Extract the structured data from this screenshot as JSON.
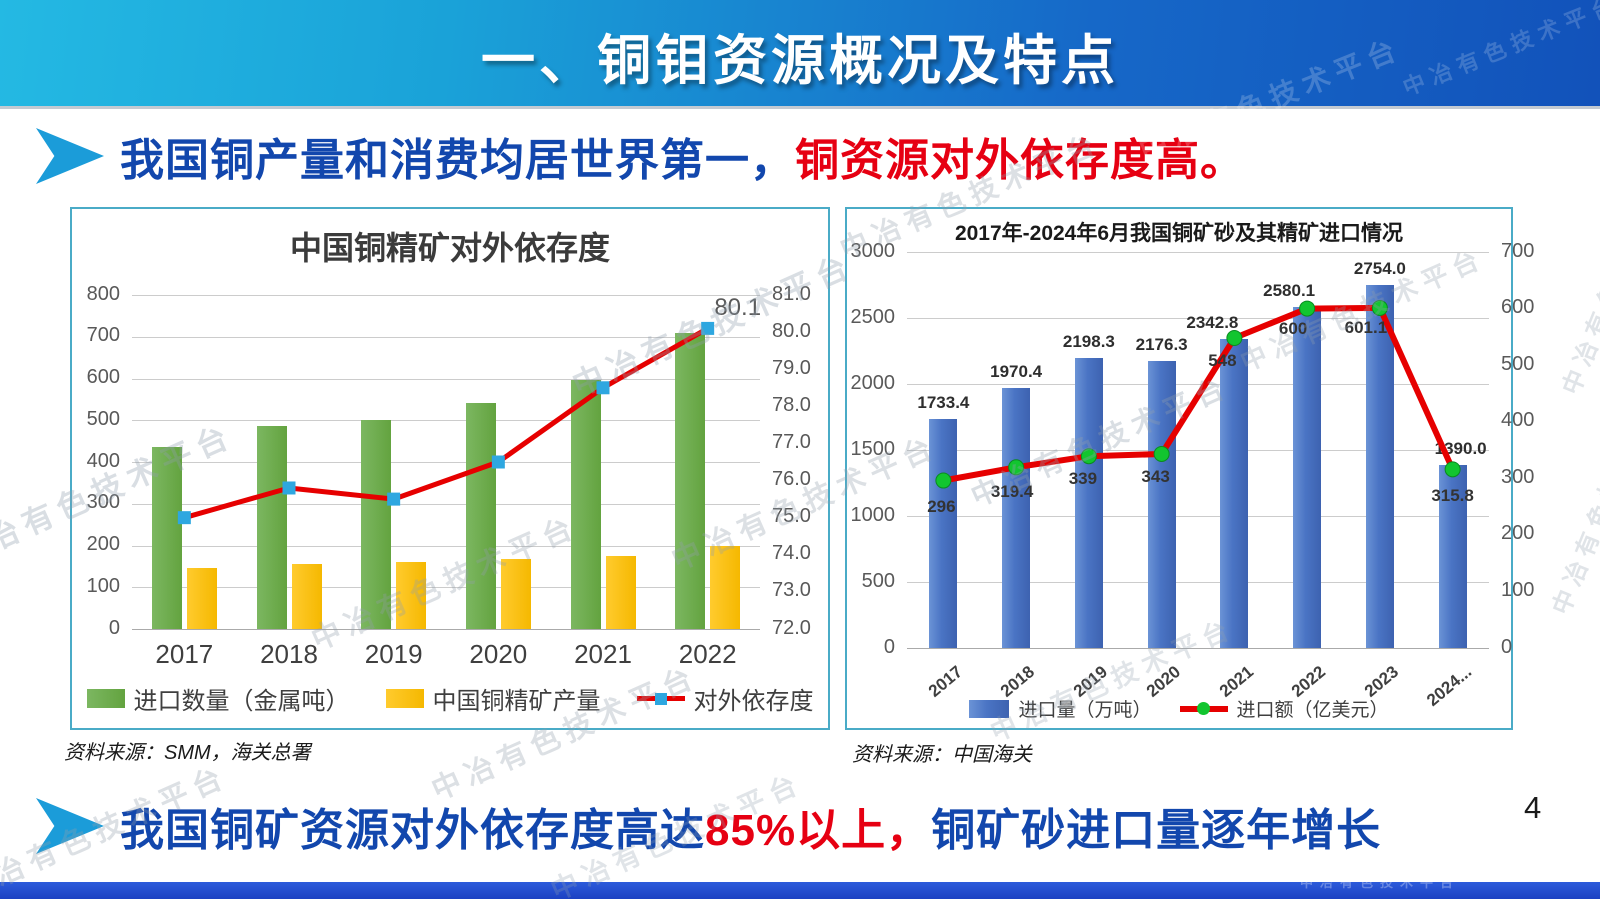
{
  "header": {
    "title": "一、铜钼资源概况及特点"
  },
  "bullet_top": {
    "text_blue": "我国铜产量和消费均居世界第一，",
    "text_red": "铜资源对外依存度高。"
  },
  "bullet_bottom": {
    "text_blue_1": "我国铜矿资源对外依存度高达",
    "text_red": "85%以上，",
    "text_blue_2": "铜矿砂进口量逐年增长"
  },
  "sources": {
    "left": "资料来源：SMM，海关总署",
    "right": "资料来源：中国海关"
  },
  "page_number": "4",
  "watermark_text": "中冶有色技术平台",
  "colors": {
    "header_start": "#24b9e3",
    "header_end": "#1252ba",
    "accent_blue": "#1247ad",
    "accent_red": "#e60012",
    "arrow_blue": "#1b9cd9",
    "panel_border": "#4aabc7",
    "bar_green": "#6aaa4b",
    "bar_yellow": "#ffc000",
    "bar_blue": "#4a74c4",
    "line_red": "#e60000",
    "marker_blue": "#2ea7e0",
    "marker_green": "#12c52f",
    "footer_bar": "#2350cf"
  },
  "chart_data": [
    {
      "type": "bar+line",
      "title": "中国铜精矿对外依存度",
      "categories": [
        "2017",
        "2018",
        "2019",
        "2020",
        "2021",
        "2022"
      ],
      "bar_series": [
        {
          "name": "进口数量（金属吨）",
          "color_key": "green",
          "values": [
            435,
            487,
            500,
            542,
            596,
            710
          ]
        },
        {
          "name": "中国铜精矿产量",
          "color_key": "yellow",
          "values": [
            147,
            155,
            161,
            168,
            176,
            198
          ]
        }
      ],
      "line_series": [
        {
          "name": "对外依存度",
          "marker": "square",
          "values": [
            75.0,
            75.8,
            75.5,
            76.5,
            78.5,
            80.1
          ],
          "point_labels": [
            "",
            "",
            "",
            "",
            "",
            "80.1"
          ]
        }
      ],
      "left_axis": {
        "min": 0,
        "max": 800,
        "step": 100,
        "decimals": 0
      },
      "right_axis": {
        "min": 72,
        "max": 81,
        "step": 1,
        "decimals": 1
      },
      "grid": true,
      "legend_position": "bottom"
    },
    {
      "type": "bar+line",
      "title": "2017年-2024年6月我国铜矿砂及其精矿进口情况",
      "categories": [
        "2017",
        "2018",
        "2019",
        "2020",
        "2021",
        "2022",
        "2023",
        "2024..."
      ],
      "bar_series": [
        {
          "name": "进口量（万吨）",
          "color_key": "blue",
          "values": [
            1733.4,
            1970.4,
            2198.3,
            2176.3,
            2342.8,
            2580.1,
            2754.0,
            1390.0
          ],
          "value_labels": [
            "1733.4",
            "1970.4",
            "2198.3",
            "2176.3",
            "2342.8",
            "2580.1",
            "2754.0",
            "1390.0"
          ]
        }
      ],
      "line_series": [
        {
          "name": "进口额（亿美元）",
          "marker": "circle",
          "values": [
            296,
            319.4,
            339,
            343,
            548,
            600,
            601.1,
            315.8
          ],
          "point_labels": [
            "296",
            "319.4",
            "339",
            "343",
            "548",
            "600",
            "601.1",
            "315.8"
          ]
        }
      ],
      "left_axis": {
        "min": 0,
        "max": 3000,
        "step": 500,
        "decimals": 0
      },
      "right_axis": {
        "min": 0,
        "max": 700,
        "step": 100,
        "decimals": 0
      },
      "grid": true,
      "legend_position": "bottom"
    }
  ]
}
